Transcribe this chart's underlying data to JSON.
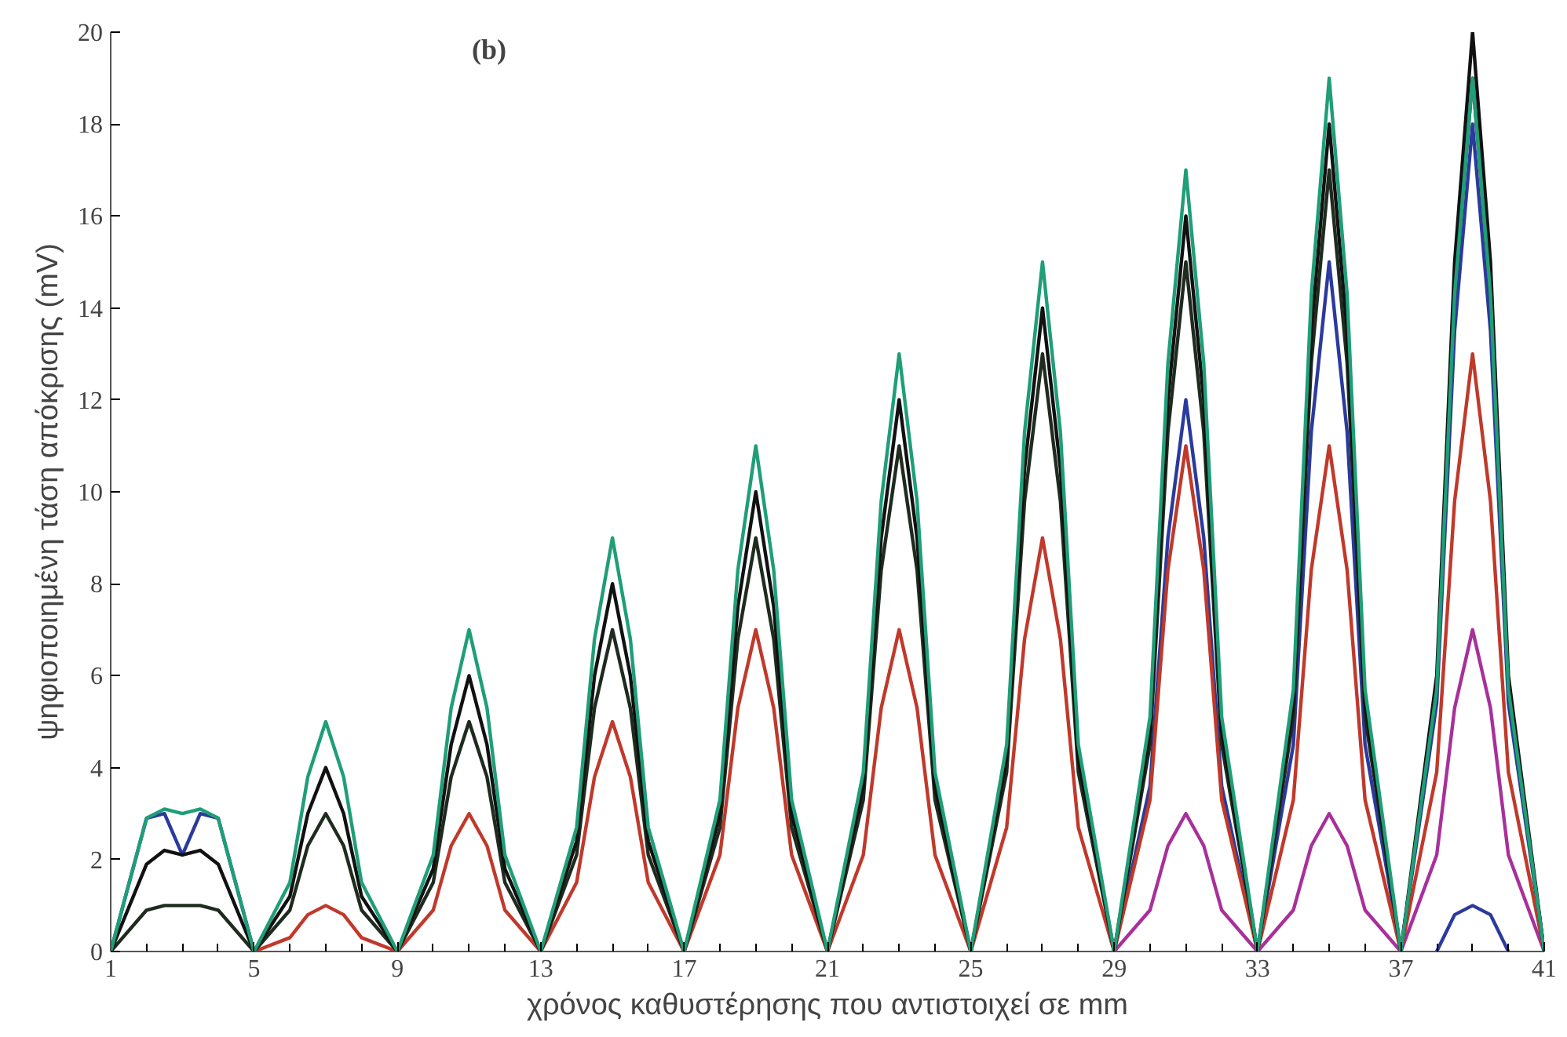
{
  "chart_data": {
    "type": "line",
    "xlabel": "χρόνος καθυστέρησης που αντιστοιχεί σε mm",
    "ylabel": "ψηφιοποιημένη τάση απόκρισης (mV)",
    "annotations": [
      "(b)"
    ],
    "xlim": [
      1,
      41
    ],
    "xticks": [
      1,
      5,
      9,
      13,
      17,
      21,
      25,
      29,
      33,
      37,
      41
    ],
    "ylim": [
      0,
      20
    ],
    "yticks": [
      0,
      2,
      4,
      6,
      8,
      10,
      12,
      14,
      16,
      18,
      20
    ],
    "grid": false,
    "marker": "none",
    "line_style": "solid",
    "x": [
      1,
      2,
      2.5,
      3,
      3.5,
      4,
      5,
      6,
      6.5,
      7,
      7.5,
      8,
      9,
      10,
      10.5,
      11,
      11.5,
      12,
      13,
      14,
      14.5,
      15,
      15.5,
      16,
      17,
      18,
      18.5,
      19,
      19.5,
      20,
      21,
      22,
      22.5,
      23,
      23.5,
      24,
      25,
      26,
      26.5,
      27,
      27.5,
      28,
      29,
      30,
      30.5,
      31,
      31.5,
      32,
      33,
      34,
      34.5,
      35,
      35.5,
      36,
      37,
      38,
      38.5,
      39,
      39.5,
      40,
      41
    ],
    "series": [
      {
        "color": "#2b3a9c",
        "values": [
          0,
          2.9,
          3.0,
          2.1,
          3.0,
          2.9,
          0,
          null,
          null,
          null,
          null,
          null,
          null,
          null,
          null,
          null,
          null,
          null,
          null,
          null,
          null,
          null,
          null,
          null,
          null,
          null,
          null,
          null,
          null,
          null,
          null,
          null,
          null,
          null,
          null,
          null,
          null,
          null,
          null,
          null,
          null,
          null,
          0,
          3.6,
          9,
          12,
          9,
          3.6,
          0,
          4.5,
          11.3,
          15,
          11.3,
          4.5,
          0,
          5.4,
          13.5,
          18,
          13.5,
          5.4,
          0
        ]
      },
      {
        "color": "#2b3a9c",
        "x": [
          38,
          38.5,
          39,
          39.5,
          40
        ],
        "values": [
          0,
          0.8,
          1,
          0.8,
          0
        ]
      },
      {
        "color": "#a8309a",
        "values": [
          null,
          null,
          null,
          null,
          null,
          null,
          null,
          null,
          null,
          null,
          null,
          null,
          null,
          null,
          null,
          null,
          null,
          null,
          null,
          null,
          null,
          null,
          null,
          null,
          null,
          null,
          null,
          null,
          null,
          null,
          null,
          null,
          null,
          null,
          null,
          null,
          null,
          null,
          null,
          null,
          null,
          null,
          0,
          0.9,
          2.3,
          3,
          2.3,
          0.9,
          0,
          0.9,
          2.3,
          3,
          2.3,
          0.9,
          0,
          2.1,
          5.3,
          7,
          5.3,
          2.1,
          0
        ]
      },
      {
        "color": "#c0392b",
        "values": [
          null,
          null,
          null,
          null,
          null,
          null,
          0,
          0.3,
          0.8,
          1,
          0.8,
          0.3,
          0,
          0.9,
          2.3,
          3,
          2.3,
          0.9,
          0,
          1.5,
          3.8,
          5,
          3.8,
          1.5,
          0,
          2.1,
          5.3,
          7,
          5.3,
          2.1,
          0,
          2.1,
          5.3,
          7,
          5.3,
          2.1,
          0,
          2.7,
          6.8,
          9,
          6.8,
          2.7,
          0,
          3.3,
          8.3,
          11,
          8.3,
          3.3,
          0,
          3.3,
          8.3,
          11,
          8.3,
          3.3,
          0,
          3.9,
          9.8,
          13,
          9.8,
          3.9,
          0
        ]
      },
      {
        "color": "#1e2b1e",
        "values": [
          0,
          0.9,
          1.0,
          1.0,
          1.0,
          0.9,
          0,
          0.9,
          2.3,
          3,
          2.3,
          0.9,
          0,
          1.5,
          3.8,
          5,
          3.8,
          1.5,
          0,
          2.1,
          5.3,
          7,
          5.3,
          2.1,
          0,
          2.7,
          6.8,
          9,
          6.8,
          2.7,
          0,
          3.3,
          8.3,
          11,
          8.3,
          3.3,
          0,
          3.9,
          9.8,
          13,
          9.8,
          3.9,
          0,
          4.5,
          11.3,
          15,
          11.3,
          4.5,
          0,
          5.1,
          12.8,
          17,
          12.8,
          5.1,
          0,
          5.7,
          14.3,
          19,
          14.3,
          5.7,
          0
        ]
      },
      {
        "color": "#111111",
        "values": [
          0,
          1.9,
          2.2,
          2.1,
          2.2,
          1.9,
          0,
          1.2,
          3,
          4,
          3,
          1.2,
          0,
          1.8,
          4.5,
          6,
          4.5,
          1.8,
          0,
          2.4,
          6,
          8,
          6,
          2.4,
          0,
          3,
          7.5,
          10,
          7.5,
          3,
          0,
          3.6,
          9,
          12,
          9,
          3.6,
          0,
          4.2,
          10.5,
          14,
          10.5,
          4.2,
          0,
          4.8,
          12,
          16,
          12,
          4.8,
          0,
          5.4,
          13.5,
          18,
          13.5,
          5.4,
          0,
          6,
          15,
          20,
          15,
          6,
          0
        ]
      },
      {
        "color": "#1f9e78",
        "values": [
          0,
          2.9,
          3.1,
          3.0,
          3.1,
          2.9,
          0,
          1.5,
          3.8,
          5,
          3.8,
          1.5,
          0,
          2.1,
          5.3,
          7,
          5.3,
          2.1,
          0,
          2.7,
          6.8,
          9,
          6.8,
          2.7,
          0,
          3.3,
          8.3,
          11,
          8.3,
          3.3,
          0,
          3.9,
          9.8,
          13,
          9.8,
          3.9,
          0,
          4.5,
          11.3,
          15,
          11.3,
          4.5,
          0,
          5.1,
          12.8,
          17,
          12.8,
          5.1,
          0,
          5.7,
          14.3,
          19,
          14.3,
          5.7,
          0,
          5.7,
          14.3,
          19,
          14.3,
          5.7,
          0
        ]
      }
    ]
  }
}
